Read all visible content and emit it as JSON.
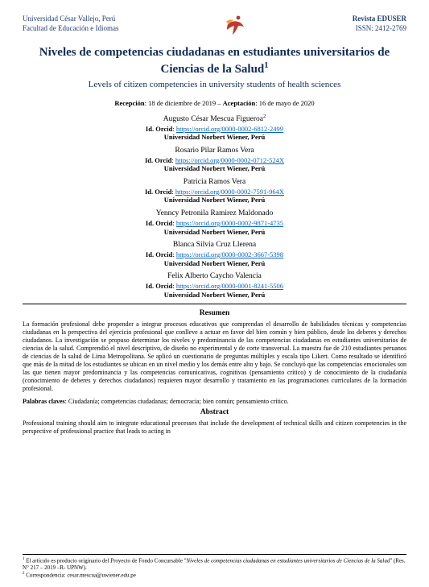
{
  "header": {
    "left_line1": "Universidad César Vallejo, Perú",
    "left_line2": "Facultad de Educación e Idiomas",
    "right_line1": "Revista EDUSER",
    "right_line2": "ISSN: 2412-2769",
    "text_color": "#1f3a6e",
    "logo_colors": {
      "orange": "#f2a23c",
      "red": "#c0392b"
    }
  },
  "title": {
    "es": "Niveles de competencias ciudadanas en estudiantes universitarios de Ciencias de la Salud",
    "sup": "1",
    "en": "Levels of citizen competencies in university students of health sciences",
    "color": "#102a56"
  },
  "dates": {
    "reception_label": "Recepción",
    "reception_value": "18 de diciembre de 2019",
    "sep": " – ",
    "acceptance_label": "Aceptación",
    "acceptance_value": "16 de mayo de 2020"
  },
  "orcid_label": "Id. Orcid",
  "affiliation": "Universidad Norbert Wiener, Perú",
  "authors": [
    {
      "name": "Augusto César Mescua Figueroa",
      "sup": "2",
      "orcid": "https://orcid.org/0000-0002-6812-2499"
    },
    {
      "name": "Rosario Pilar Ramos Vera",
      "sup": "",
      "orcid": "https://orcid.org/0000-0002-0712-524X"
    },
    {
      "name": "Patricia Ramos Vera",
      "sup": "",
      "orcid": "https://orcid.org/0000-0002-7591-964X"
    },
    {
      "name": "Yenncy Petronila Ramirez Maldonado",
      "sup": "",
      "orcid": "https://orcid.org/0000-0002-9871-4735"
    },
    {
      "name": "Blanca Silvia Cruz Llerena",
      "sup": "",
      "orcid": "https://orcid.org/0000-0002-3667-5398"
    },
    {
      "name": "Felix Alberto Caycho Valencia",
      "sup": "",
      "orcid": "https://orcid.org/0000-0001-8241-5506"
    }
  ],
  "resumen": {
    "heading": "Resumen",
    "body": "La formación profesional debe propender a integrar procesos educativos que comprendan el desarrollo de habilidades técnicas y competencias ciudadanas en la perspectiva del ejercicio profesional que conlleve a actuar en favor del bien común y bien público, desde los deberes y derechos ciudadanos. La investigación se propuso determinar los niveles y predominancia de las competencias ciudadanas en estudiantes universitarios de ciencias de la salud. Comprendió el nivel descriptivo, de diseño no experimental y de corte transversal. La muestra fue de 210 estudiantes peruanos de ciencias de la salud de Lima Metropolitana. Se aplicó un cuestionario de preguntas múltiples y escala tipo Likert. Como resultado se identificó que más de la mitad de los estudiantes se ubican en un nivel medio y los demás entre alto y bajo. Se concluyó que las competencias emocionales son las que tienen mayor predominancia y las competencias comunicativas, cognitivas (pensamiento crítico) y de conocimiento de la ciudadanía (conocimiento de deberes y derechos ciudadanos) requieren mayor desarrollo y tratamiento en las programaciones curriculares de la formación profesional."
  },
  "keywords": {
    "label": "Palabras claves",
    "value": "Ciudadanía; competencias ciudadanas; democracia; bien común; pensamiento crítico."
  },
  "abstract": {
    "heading": "Abstract",
    "body": "Professional training should aim to integrate educational processes that include the development of technical skills and citizen competencies in the perspective of professional practice that leads to acting in"
  },
  "footnotes": {
    "fn1_pre": "El artículo es producto originario del Proyecto de Fondo Concursable \"",
    "fn1_title": "Niveles de competencias ciudadanas en estudiantes universitarios de Ciencias de la Salud",
    "fn1_post": "\" (Res. N° 217 – 2019 –R- UPNW).",
    "fn2": "Correspondencia: cesar.mescua@uwiener.edu.pe"
  },
  "link_color": "#0563c1"
}
